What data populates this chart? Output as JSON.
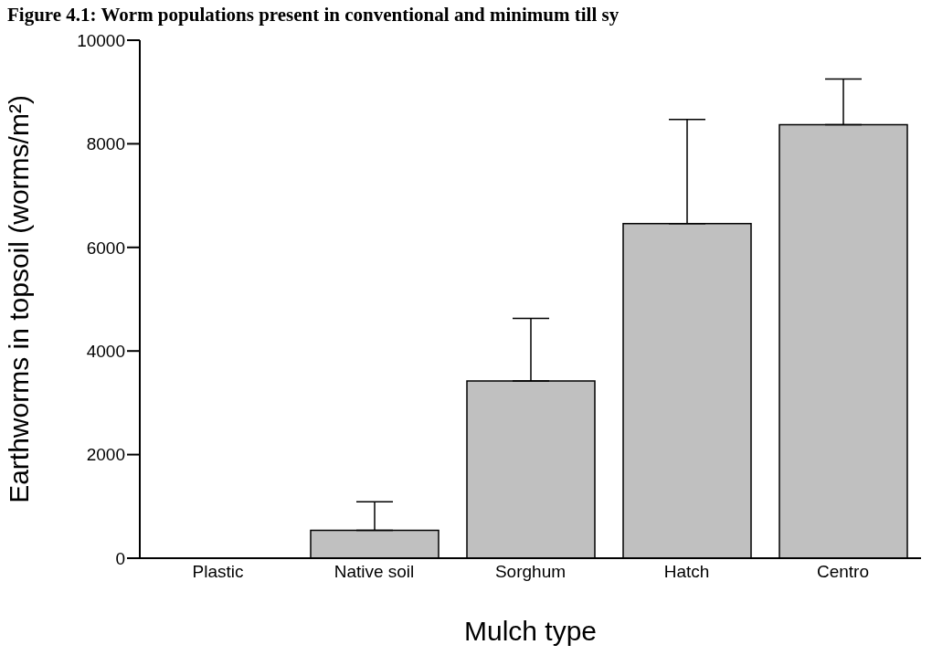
{
  "chart_data": {
    "type": "bar",
    "title": "Figure 4.1: Worm populations present in conventional and minimum till sy",
    "xlabel": "Mulch type",
    "ylabel": "Earthworms in topsoil (worms/m²)",
    "categories": [
      "Plastic",
      "Native soil",
      "Sorghum",
      "Hatch",
      "Centro"
    ],
    "values": [
      0,
      540,
      3420,
      6460,
      8370
    ],
    "errors": [
      null,
      [
        540,
        1090
      ],
      [
        3420,
        4630
      ],
      [
        6460,
        8470
      ],
      [
        8370,
        9250
      ]
    ],
    "color": "#c0c0c0",
    "ylim": [
      0,
      10000
    ],
    "yticks": [
      0,
      2000,
      4000,
      6000,
      8000,
      10000
    ]
  }
}
